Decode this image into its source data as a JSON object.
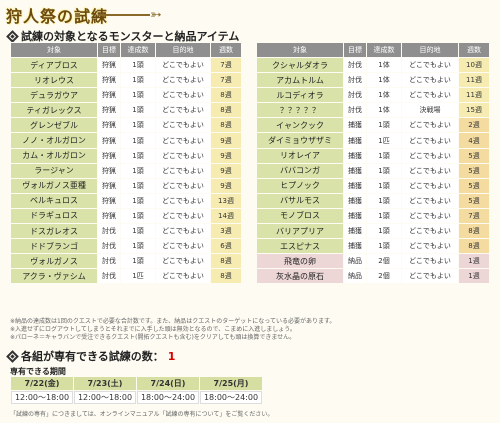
{
  "title": "狩人祭の試練",
  "section1": "試練の対象となるモンスターと納品アイテム",
  "headers": [
    "対象",
    "目標",
    "達成数",
    "目的地",
    "週数"
  ],
  "left_rows": [
    {
      "name": "ディアブロス",
      "goal": "狩猟",
      "count": "1頭",
      "dest": "どこでもよい",
      "weeks": "7週"
    },
    {
      "name": "リオレウス",
      "goal": "狩猟",
      "count": "1頭",
      "dest": "どこでもよい",
      "weeks": "7週"
    },
    {
      "name": "デュラガウア",
      "goal": "狩猟",
      "count": "1頭",
      "dest": "どこでもよい",
      "weeks": "8週"
    },
    {
      "name": "ティガレックス",
      "goal": "狩猟",
      "count": "1頭",
      "dest": "どこでもよい",
      "weeks": "8週"
    },
    {
      "name": "グレンゼブル",
      "goal": "狩猟",
      "count": "1頭",
      "dest": "どこでもよい",
      "weeks": "8週"
    },
    {
      "name": "ノノ・オルガロン",
      "goal": "狩猟",
      "count": "1頭",
      "dest": "どこでもよい",
      "weeks": "9週"
    },
    {
      "name": "カム・オルガロン",
      "goal": "狩猟",
      "count": "1頭",
      "dest": "どこでもよい",
      "weeks": "9週"
    },
    {
      "name": "ラージャン",
      "goal": "狩猟",
      "count": "1頭",
      "dest": "どこでもよい",
      "weeks": "9週"
    },
    {
      "name": "ヴォルガノス亜種",
      "goal": "狩猟",
      "count": "1頭",
      "dest": "どこでもよい",
      "weeks": "9週"
    },
    {
      "name": "ベルキュロス",
      "goal": "狩猟",
      "count": "1頭",
      "dest": "どこでもよい",
      "weeks": "13週"
    },
    {
      "name": "ドラギュロス",
      "goal": "狩猟",
      "count": "1頭",
      "dest": "どこでもよい",
      "weeks": "14週"
    },
    {
      "name": "ドスガレオス",
      "goal": "討伐",
      "count": "1頭",
      "dest": "どこでもよい",
      "weeks": "3週"
    },
    {
      "name": "ドドブランゴ",
      "goal": "討伐",
      "count": "1頭",
      "dest": "どこでもよい",
      "weeks": "6週"
    },
    {
      "name": "ヴォルガノス",
      "goal": "討伐",
      "count": "1頭",
      "dest": "どこでもよい",
      "weeks": "8週"
    },
    {
      "name": "アクラ・ヴァシム",
      "goal": "討伐",
      "count": "1匹",
      "dest": "どこでもよい",
      "weeks": "8週"
    }
  ],
  "right_rows": [
    {
      "name": "クシャルダオラ",
      "goal": "討伐",
      "count": "1体",
      "dest": "どこでもよい",
      "weeks": "10週"
    },
    {
      "name": "アカムトルム",
      "goal": "討伐",
      "count": "1体",
      "dest": "どこでもよい",
      "weeks": "11週"
    },
    {
      "name": "ルコディオラ",
      "goal": "討伐",
      "count": "1体",
      "dest": "どこでもよい",
      "weeks": "11週"
    },
    {
      "name": "？？？？？",
      "goal": "討伐",
      "count": "1体",
      "dest": "決戦場",
      "weeks": "15週"
    },
    {
      "name": "イャンクック",
      "goal": "捕獲",
      "count": "1頭",
      "dest": "どこでもよい",
      "weeks": "2週"
    },
    {
      "name": "ダイミョウザザミ",
      "goal": "捕獲",
      "count": "1匹",
      "dest": "どこでもよい",
      "weeks": "4週"
    },
    {
      "name": "リオレイア",
      "goal": "捕獲",
      "count": "1頭",
      "dest": "どこでもよい",
      "weeks": "5週"
    },
    {
      "name": "ババコンガ",
      "goal": "捕獲",
      "count": "1頭",
      "dest": "どこでもよい",
      "weeks": "5週"
    },
    {
      "name": "ヒプノック",
      "goal": "捕獲",
      "count": "1頭",
      "dest": "どこでもよい",
      "weeks": "5週"
    },
    {
      "name": "バサルモス",
      "goal": "捕獲",
      "count": "1頭",
      "dest": "どこでもよい",
      "weeks": "5週"
    },
    {
      "name": "モノブロス",
      "goal": "捕獲",
      "count": "1頭",
      "dest": "どこでもよい",
      "weeks": "7週"
    },
    {
      "name": "バリアプリア",
      "goal": "捕獲",
      "count": "1頭",
      "dest": "どこでもよい",
      "weeks": "8週"
    },
    {
      "name": "エスピナス",
      "goal": "捕獲",
      "count": "1頭",
      "dest": "どこでもよい",
      "weeks": "8週"
    },
    {
      "name": "飛竜の卵",
      "goal": "納品",
      "count": "2個",
      "dest": "どこでもよい",
      "weeks": "1週"
    },
    {
      "name": "灰水晶の原石",
      "goal": "納品",
      "count": "2個",
      "dest": "どこでもよい",
      "weeks": "1週"
    }
  ],
  "notes": [
    "※納品の達成数は1回のクエストで必要な合計数です。また、納品はクエストのターゲットになっている必要があります。",
    "※入進せずにログアウトしてしまうとそれまでに入手した頭は無効となるので、こまめに入進しましょう。",
    "※パローネ＝キャラバンで受注できるクエスト(開拓クエストも含む)をクリアしても頭は換算できません。"
  ],
  "section2_prefix": "各組が専有できる試練の数：",
  "section2_count": "1",
  "sched_label": "専有できる期間",
  "sched_dates": [
    "7/22(金)",
    "7/23(土)",
    "7/24(日)",
    "7/25(月)"
  ],
  "sched_times": [
    "12:00〜18:00",
    "12:00〜18:00",
    "18:00〜24:00",
    "18:00〜24:00"
  ],
  "footer": "「試練の専有」につきましては、オンラインマニュアル「試練の専有について」をご覧ください。"
}
